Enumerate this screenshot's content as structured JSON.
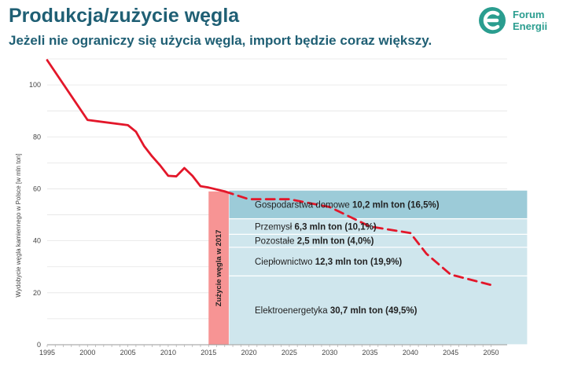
{
  "header": {
    "title": "Produkcja/zużycie węgla",
    "subtitle": "Jeżeli nie ograniczy się użycia węgla, import będzie coraz większy."
  },
  "logo": {
    "line1": "Forum",
    "line2": "Energii",
    "color": "#2a9d8f"
  },
  "chart_data": {
    "type": "line",
    "ylabel": "Wydobycie węgla kamiennego w Polsce [w mln ton]",
    "xlim": [
      1995,
      2052
    ],
    "ylim": [
      0,
      110
    ],
    "yticks": [
      0,
      20,
      40,
      60,
      80,
      100
    ],
    "xticks": [
      1995,
      2000,
      2005,
      2010,
      2015,
      2020,
      2025,
      2030,
      2035,
      2040,
      2045,
      2050
    ],
    "series": [
      {
        "name": "historical",
        "style": "solid",
        "color": "#e3172a",
        "x": [
          1995,
          2000,
          2005,
          2006,
          2007,
          2008,
          2009,
          2010,
          2011,
          2012,
          2013,
          2014,
          2015,
          2017
        ],
        "y": [
          109.5,
          86.5,
          84.5,
          82,
          76.5,
          72.5,
          69,
          65,
          64.8,
          68,
          65,
          61,
          60.5,
          59
        ]
      },
      {
        "name": "forecast",
        "style": "dashed",
        "color": "#e3172a",
        "x": [
          2017,
          2020,
          2025,
          2030,
          2035,
          2040,
          2042,
          2045,
          2050
        ],
        "y": [
          59,
          56,
          56,
          53,
          45.5,
          43,
          35,
          27,
          23
        ]
      }
    ],
    "consumption_2017": {
      "label": "Zużycie węgla w 2017",
      "color": "#f79494",
      "value_total": 59,
      "x_start": 2015,
      "x_end": 2017.5,
      "segments": [
        {
          "name": "Elektroenergetyka",
          "value_text": "30,7 mln ton (49,5%)",
          "from": 0,
          "to": 26.5,
          "color": "#cfe6ed"
        },
        {
          "name": "Ciepłownictwo",
          "value_text": "12,3 mln ton (19,9%)",
          "from": 26.5,
          "to": 37.5,
          "color": "#cfe6ed"
        },
        {
          "name": "Pozostałe",
          "value_text": "2,5 mln ton (4,0%)",
          "from": 37.5,
          "to": 42.5,
          "color": "#cfe6ed"
        },
        {
          "name": "Przemysł",
          "value_text": "6,3 mln ton (10,1%)",
          "from": 42.5,
          "to": 48.5,
          "color": "#cfe6ed"
        },
        {
          "name": "Gospodarstwa domowe",
          "value_text": "10,2 mln ton (16,5%)",
          "from": 48.5,
          "to": 59.5,
          "color": "#9ccbd8"
        }
      ]
    }
  }
}
